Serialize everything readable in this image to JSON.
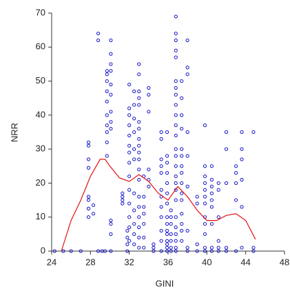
{
  "chart_data": {
    "type": "scatter",
    "xlabel": "GINI",
    "ylabel": "NRR",
    "xlim": [
      24,
      48
    ],
    "ylim": [
      0,
      70
    ],
    "xticks": [
      24,
      28,
      32,
      36,
      40,
      44,
      48
    ],
    "yticks": [
      0,
      10,
      20,
      30,
      40,
      50,
      60,
      70
    ],
    "points": {
      "color": "#1010c8",
      "x": [
        24.3,
        25.2,
        26,
        27,
        27.8,
        27.8,
        27.8,
        27.8,
        27.8,
        27.8,
        27.8,
        27.8,
        28.3,
        28.3,
        28.8,
        28.8,
        28.8,
        29.2,
        29.5,
        29.7,
        29.7,
        29.7,
        29.7,
        29.7,
        29.7,
        29.7,
        29.7,
        29.7,
        29.7,
        30.1,
        30.1,
        30.1,
        30.1,
        30.1,
        30.1,
        30.1,
        30.1,
        30.1,
        30.1,
        30.1,
        30.1,
        30.1,
        31.3,
        31.3,
        31.3,
        31.3,
        31.8,
        31.8,
        31.8,
        31.8,
        32,
        32,
        32,
        32,
        32,
        32,
        32,
        32,
        32,
        32,
        32,
        32,
        32,
        32,
        32.5,
        32.5,
        32.5,
        32.5,
        32.5,
        32.5,
        32.5,
        32.5,
        32.5,
        32.5,
        32.5,
        33,
        33,
        33,
        33,
        33,
        33,
        33,
        33,
        33,
        33,
        33,
        33,
        33,
        33,
        33,
        33,
        33,
        33,
        33,
        33.5,
        33.5,
        33.5,
        33.5,
        33.5,
        33.5,
        33.5,
        34,
        34,
        34,
        34,
        34,
        34,
        34.5,
        34.5,
        34.5,
        35.3,
        35.3,
        35.3,
        35.3,
        35.3,
        35.3,
        35.3,
        35.3,
        35.3,
        35.3,
        35.3,
        35.3,
        35.9,
        35.9,
        35.9,
        35.9,
        35.9,
        35.9,
        35.9,
        35.9,
        35.9,
        35.9,
        35.9,
        35.9,
        35.9,
        35.9,
        35.9,
        36.3,
        36.3,
        36.3,
        36.3,
        36.3,
        36.3,
        36.3,
        36.8,
        36.8,
        36.8,
        36.8,
        36.8,
        36.8,
        36.8,
        36.8,
        36.8,
        36.8,
        36.8,
        36.8,
        36.8,
        36.8,
        36.8,
        36.8,
        36.8,
        36.8,
        36.8,
        36.8,
        36.8,
        36.8,
        36.8,
        36.8,
        36.8,
        37.4,
        37.4,
        37.4,
        37.4,
        37.4,
        37.4,
        37.4,
        37.4,
        37.4,
        37.4,
        37.4,
        37.4,
        37.4,
        37.4,
        37.4,
        38,
        38,
        38,
        38,
        38,
        38,
        38,
        38,
        38,
        39,
        39,
        39,
        39,
        39.8,
        39.8,
        39.8,
        39.8,
        39.8,
        39.8,
        39.8,
        39.8,
        39.8,
        39.8,
        39.8,
        39.8,
        40.5,
        40.5,
        40.5,
        40.5,
        40.5,
        40.5,
        40.5,
        40.5,
        40.5,
        41.2,
        41.2,
        41.2,
        41.2,
        41.2,
        41.2,
        42,
        42,
        42,
        42,
        42,
        43,
        43,
        43,
        43,
        43,
        43.6,
        43.6,
        43.6,
        43.6,
        43.6,
        43.6,
        44.8,
        44.8,
        44.8
      ],
      "y": [
        0,
        0,
        0,
        0,
        32,
        31,
        27,
        24.5,
        16,
        15,
        12.5,
        10,
        11,
        13.5,
        64,
        62,
        0,
        0,
        0,
        53,
        52,
        50,
        47,
        44,
        40,
        37,
        35,
        32,
        28,
        62,
        58,
        55,
        53,
        49,
        46,
        41,
        38,
        36,
        9,
        8,
        5,
        0,
        17,
        16,
        15,
        14,
        6,
        4,
        2,
        0,
        49,
        42,
        40,
        37,
        34,
        31,
        29,
        26,
        22,
        18,
        14,
        10,
        7,
        3,
        47,
        43,
        39,
        35,
        30,
        27,
        17,
        12,
        8,
        5,
        2,
        55,
        52,
        47,
        45,
        43,
        38,
        36,
        33,
        31,
        29,
        27,
        24,
        21,
        16,
        13,
        10,
        7,
        4,
        1,
        22,
        16,
        13,
        11,
        8,
        4,
        1,
        48,
        46,
        41,
        24,
        21,
        19,
        0,
        1,
        2,
        35,
        33,
        27,
        25,
        23,
        18,
        16,
        13,
        10,
        6,
        3,
        0,
        35,
        28,
        26,
        23,
        20,
        17,
        14,
        10,
        8,
        6,
        5,
        3,
        2,
        1,
        0,
        12,
        10,
        8,
        5,
        3,
        1,
        0,
        69,
        64,
        62,
        59,
        57,
        50,
        48,
        46,
        43,
        40,
        37,
        34,
        30,
        28,
        25,
        22,
        20,
        18,
        15,
        10,
        7,
        5,
        3,
        1,
        0,
        50,
        45,
        40,
        36,
        30,
        28,
        25,
        23,
        20,
        17,
        15,
        11,
        8,
        6,
        3,
        62,
        54,
        52,
        35,
        28,
        19,
        6,
        1,
        0,
        0,
        2,
        16,
        14,
        37,
        25,
        22,
        20,
        18,
        16,
        14,
        10,
        8,
        5,
        1,
        0,
        25,
        21,
        19,
        17,
        15,
        13,
        8,
        1,
        0,
        20,
        18,
        10,
        3,
        1,
        0,
        35,
        30,
        20,
        1,
        0,
        25,
        23,
        20,
        15,
        0,
        35,
        30,
        27,
        21,
        13,
        1,
        35,
        1,
        0
      ]
    },
    "curve": {
      "color": "#e01010",
      "x": [
        25,
        26,
        27,
        28,
        29,
        29.5,
        30,
        31,
        32,
        33,
        34,
        35,
        36,
        37,
        38,
        39,
        40,
        41,
        42,
        43,
        44,
        45
      ],
      "y": [
        0,
        9,
        15,
        22,
        27,
        27,
        25,
        21.5,
        20.5,
        22.5,
        20.5,
        17,
        15,
        19,
        16,
        12,
        9,
        9,
        10.5,
        11,
        9,
        3.5
      ]
    }
  }
}
